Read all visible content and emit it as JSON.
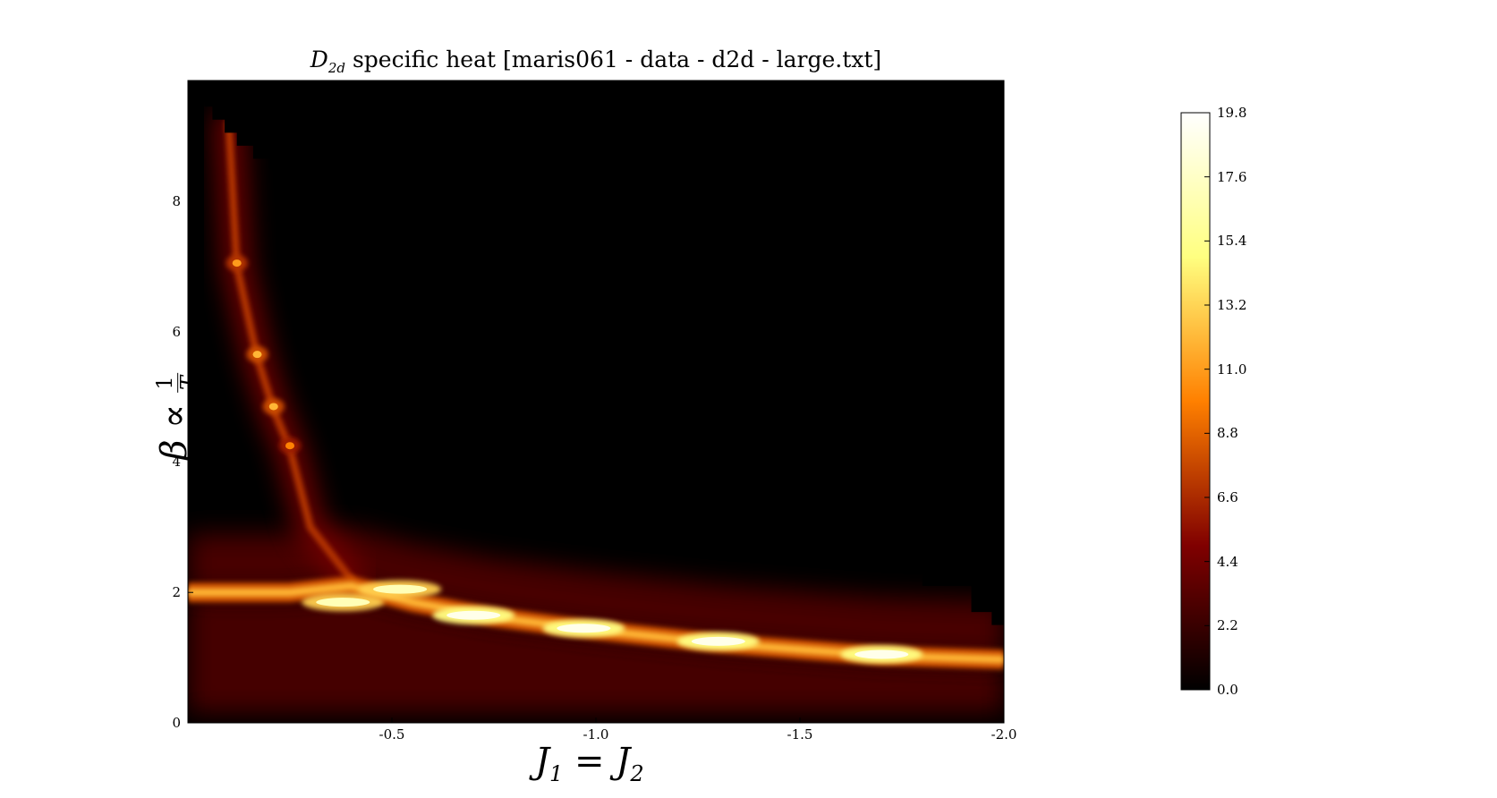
{
  "chart_data": {
    "type": "heatmap",
    "title": {
      "symbol": "D",
      "subscript": "2d",
      "text": "specific heat [maris061 - data - d2d - large.txt]"
    },
    "xlabel": {
      "base": "J",
      "sub1": "1",
      "op": "=",
      "base2": "J",
      "sub2": "2"
    },
    "ylabel": {
      "symbol": "β",
      "relation": "∝",
      "numerator": "1",
      "denominator": "T"
    },
    "xlim": [
      0.0,
      -2.0
    ],
    "ylim": [
      0,
      9.85
    ],
    "xticks": [
      {
        "value": -0.5,
        "label": "-0.5"
      },
      {
        "value": -1.0,
        "label": "-1.0"
      },
      {
        "value": -1.5,
        "label": "-1.5"
      },
      {
        "value": -2.0,
        "label": "-2.0"
      }
    ],
    "yticks": [
      {
        "value": 0,
        "label": "0"
      },
      {
        "value": 2,
        "label": "2"
      },
      {
        "value": 4,
        "label": "4"
      },
      {
        "value": 6,
        "label": "6"
      },
      {
        "value": 8,
        "label": "8"
      }
    ],
    "colorbar": {
      "colormap": "afmhot",
      "range": [
        0.0,
        19.8
      ],
      "ticks": [
        "0.0",
        "2.2",
        "4.4",
        "6.6",
        "8.8",
        "11.0",
        "13.2",
        "15.4",
        "17.6",
        "19.8"
      ]
    },
    "peaks": [
      {
        "x": -0.12,
        "y": 7.05,
        "value": 11
      },
      {
        "x": -0.17,
        "y": 5.65,
        "value": 12
      },
      {
        "x": -0.21,
        "y": 4.85,
        "value": 12
      },
      {
        "x": -0.25,
        "y": 4.25,
        "value": 10
      },
      {
        "x": -0.38,
        "y": 1.85,
        "value": 17
      },
      {
        "x": -0.52,
        "y": 2.05,
        "value": 17
      },
      {
        "x": -0.7,
        "y": 1.65,
        "value": 19
      },
      {
        "x": -0.97,
        "y": 1.45,
        "value": 19
      },
      {
        "x": -1.3,
        "y": 1.25,
        "value": 19
      },
      {
        "x": -1.7,
        "y": 1.05,
        "value": 19
      }
    ],
    "ridge_vertical": [
      [
        -0.1,
        9.2
      ],
      [
        -0.12,
        7.0
      ],
      [
        -0.17,
        5.6
      ],
      [
        -0.21,
        4.8
      ],
      [
        -0.25,
        4.2
      ],
      [
        -0.3,
        3.0
      ],
      [
        -0.4,
        2.2
      ]
    ],
    "ridge_horizontal": [
      [
        0.0,
        2.0
      ],
      [
        -0.25,
        2.0
      ],
      [
        -0.4,
        2.1
      ],
      [
        -0.55,
        1.85
      ],
      [
        -0.75,
        1.62
      ],
      [
        -1.0,
        1.42
      ],
      [
        -1.3,
        1.22
      ],
      [
        -1.7,
        1.03
      ],
      [
        -2.0,
        0.97
      ]
    ]
  }
}
